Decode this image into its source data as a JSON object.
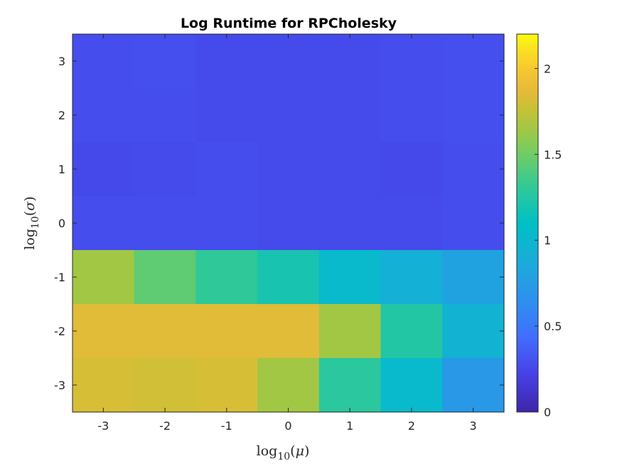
{
  "chart_data": {
    "type": "heatmap",
    "title": "Log Runtime for RPCholesky",
    "xlabel": "log10(μ)",
    "ylabel": "log10(σ)",
    "x_ticks": [
      "-3",
      "-2",
      "-1",
      "0",
      "1",
      "2",
      "3"
    ],
    "y_ticks": [
      "3",
      "2",
      "1",
      "0",
      "-1",
      "-2",
      "-3"
    ],
    "x_values": [
      -3,
      -2,
      -1,
      0,
      1,
      2,
      3
    ],
    "y_values": [
      3,
      2,
      1,
      0,
      -1,
      -2,
      -3
    ],
    "values": [
      [
        0.28,
        0.29,
        0.27,
        0.27,
        0.27,
        0.28,
        0.29
      ],
      [
        0.28,
        0.28,
        0.27,
        0.27,
        0.27,
        0.28,
        0.29
      ],
      [
        0.26,
        0.27,
        0.28,
        0.27,
        0.27,
        0.26,
        0.28
      ],
      [
        0.28,
        0.28,
        0.28,
        0.27,
        0.27,
        0.27,
        0.28
      ],
      [
        1.65,
        1.45,
        1.3,
        1.2,
        1.03,
        0.92,
        0.8
      ],
      [
        1.85,
        1.85,
        1.85,
        1.85,
        1.65,
        1.25,
        0.95
      ],
      [
        1.82,
        1.8,
        1.82,
        1.65,
        1.28,
        1.02,
        0.72
      ]
    ],
    "colorbar": {
      "range": [
        0,
        2.2
      ],
      "ticks": [
        "0",
        "0.5",
        "1",
        "1.5",
        "2"
      ],
      "tick_values": [
        0,
        0.5,
        1,
        1.5,
        2
      ],
      "colormap": "parula"
    },
    "grid": false
  }
}
